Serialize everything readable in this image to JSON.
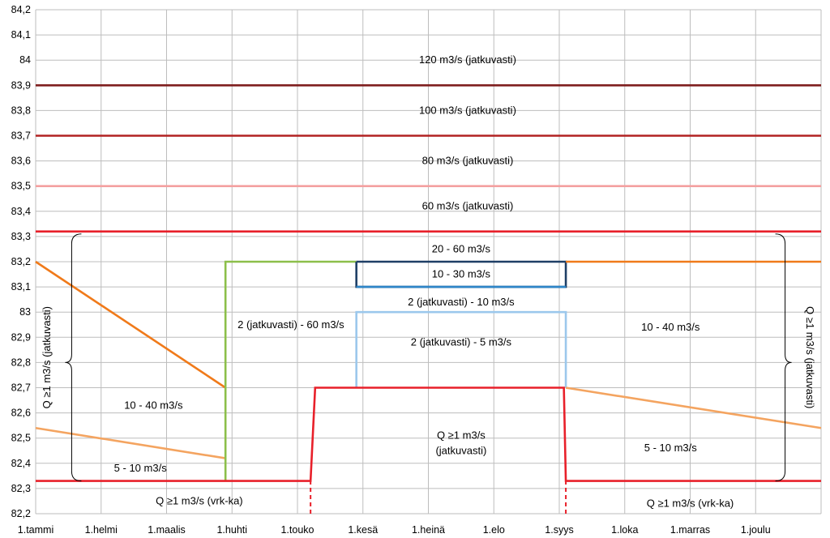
{
  "chart_data": {
    "type": "line",
    "ylim": [
      82.2,
      84.2
    ],
    "y_ticks": [
      "84,2",
      "84,1",
      "84",
      "83,9",
      "83,8",
      "83,7",
      "83,6",
      "83,5",
      "83,4",
      "83,3",
      "83,2",
      "83,1",
      "83",
      "82,9",
      "82,8",
      "82,7",
      "82,6",
      "82,5",
      "82,4",
      "82,3",
      "82,2"
    ],
    "x_ticks": [
      "1.tammi",
      "1.helmi",
      "1.maalis",
      "1.huhti",
      "1.touko",
      "1.kesä",
      "1.heinä",
      "1.elo",
      "1.syys",
      "1.loka",
      "1.marras",
      "1.joulu"
    ],
    "xlim": [
      0,
      12
    ],
    "grid": true,
    "series": [
      {
        "color": "#7F1F1F",
        "x": [
          0,
          12
        ],
        "y": [
          83.9,
          83.9
        ]
      },
      {
        "color": "#B22222",
        "x": [
          0,
          12
        ],
        "y": [
          83.7,
          83.7
        ]
      },
      {
        "color": "#F4A0A0",
        "x": [
          0,
          12
        ],
        "y": [
          83.5,
          83.5
        ]
      },
      {
        "color": "#E8202A",
        "x": [
          0,
          12
        ],
        "y": [
          83.32,
          83.32
        ]
      },
      {
        "color": "#F07A1A",
        "x": [
          0,
          2.9
        ],
        "y": [
          83.2,
          82.7
        ]
      },
      {
        "color": "#F4A460",
        "x": [
          0,
          2.9
        ],
        "y": [
          82.54,
          82.42
        ]
      },
      {
        "color": "#8CBF4A",
        "x": [
          2.9,
          2.9,
          4.9
        ],
        "y": [
          82.33,
          83.2,
          83.2
        ]
      },
      {
        "color": "#1F3F66",
        "x": [
          4.9,
          8.1,
          8.1,
          4.9,
          4.9
        ],
        "y": [
          83.2,
          83.2,
          83.1,
          83.1,
          83.2
        ]
      },
      {
        "color": "#2E86C8",
        "x": [
          4.9,
          8.1
        ],
        "y": [
          83.1,
          83.1
        ]
      },
      {
        "color": "#9CC8EC",
        "x": [
          4.9,
          4.9,
          8.1,
          8.1
        ],
        "y": [
          82.7,
          83.0,
          83.0,
          82.7
        ]
      },
      {
        "color": "#F07A1A",
        "x": [
          8.1,
          12
        ],
        "y": [
          83.2,
          83.2
        ]
      },
      {
        "color": "#F4A460",
        "x": [
          8.1,
          12
        ],
        "y": [
          82.7,
          82.54
        ]
      },
      {
        "color": "#E8202A",
        "x": [
          0,
          4.2,
          4.27,
          8.07,
          8.1,
          12
        ],
        "y": [
          82.33,
          82.33,
          82.7,
          82.7,
          82.33,
          82.33
        ]
      }
    ],
    "dashed_lines": [
      {
        "color": "#E8202A",
        "x": 4.2,
        "y": [
          82.2,
          82.33
        ]
      },
      {
        "color": "#E8202A",
        "x": 8.1,
        "y": [
          82.2,
          82.33
        ]
      }
    ],
    "annotations": [
      {
        "text": "120 m3/s (jatkuvasti)",
        "x": 6.6,
        "y": 84.0
      },
      {
        "text": "100 m3/s (jatkuvasti)",
        "x": 6.6,
        "y": 83.8
      },
      {
        "text": "80 m3/s (jatkuvasti)",
        "x": 6.6,
        "y": 83.6
      },
      {
        "text": "60 m3/s (jatkuvasti)",
        "x": 6.6,
        "y": 83.42
      },
      {
        "text": "20 - 60 m3/s",
        "x": 6.5,
        "y": 83.25
      },
      {
        "text": "10 - 30 m3/s",
        "x": 6.5,
        "y": 83.15
      },
      {
        "text": "2 (jatkuvasti) - 10 m3/s",
        "x": 6.5,
        "y": 83.04
      },
      {
        "text": "2 (jatkuvasti) - 5 m3/s",
        "x": 6.5,
        "y": 82.88
      },
      {
        "text": "2 (jatkuvasti) - 60 m3/s",
        "x": 3.9,
        "y": 82.95
      },
      {
        "text": "10 - 40 m3/s",
        "x": 1.8,
        "y": 82.63
      },
      {
        "text": "5 - 10 m3/s",
        "x": 1.6,
        "y": 82.38
      },
      {
        "text": "10 - 40 m3/s",
        "x": 9.7,
        "y": 82.94
      },
      {
        "text": "5 - 10 m3/s",
        "x": 9.7,
        "y": 82.46
      },
      {
        "text": "Q ≥1 m3/s",
        "x": 6.5,
        "y": 82.51
      },
      {
        "text": "(jatkuvasti)",
        "x": 6.5,
        "y": 82.45
      },
      {
        "text": "Q ≥1 m3/s (vrk-ka)",
        "x": 2.5,
        "y": 82.25
      },
      {
        "text": "Q ≥1 m3/s (vrk-ka)",
        "x": 10.0,
        "y": 82.24
      }
    ],
    "vertical_annotations": [
      {
        "text": "Q ≥1 m3/s (jatkuvasti)",
        "x": 0.22,
        "y": 82.82,
        "rotate": -90
      },
      {
        "text": "Q ≥1 m3/s (jatkuvasti)",
        "x": 11.78,
        "y": 82.82,
        "rotate": 90
      }
    ],
    "braces": [
      {
        "x": 0.55,
        "y_top": 83.31,
        "y_bottom": 82.33,
        "y_mid": 82.8,
        "side": "left"
      },
      {
        "x": 11.45,
        "y_top": 83.31,
        "y_bottom": 82.33,
        "y_mid": 82.8,
        "side": "right"
      }
    ]
  }
}
